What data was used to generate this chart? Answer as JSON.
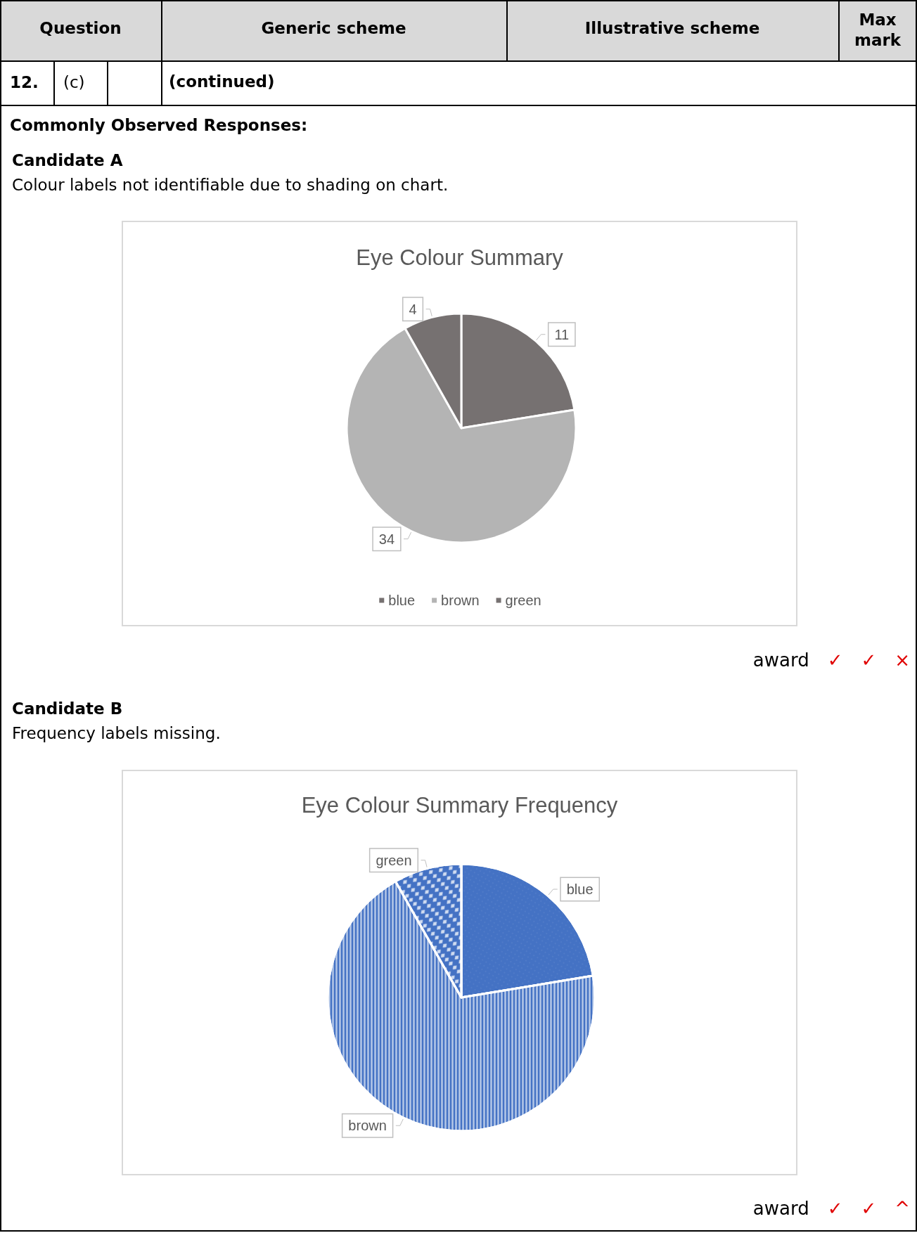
{
  "chart_data": [
    {
      "type": "pie",
      "title": "Eye Colour Summary",
      "categories": [
        "blue",
        "brown",
        "green"
      ],
      "values": [
        11,
        34,
        4
      ],
      "colors": [
        "#767171",
        "#b4b4b4",
        "#767171"
      ],
      "data_labels": true,
      "legend": "bottom",
      "annotations": [
        "Question",
        "Generic scheme",
        "Illustrative scheme",
        "Max mark",
        "12.",
        "(c)",
        "(continued)",
        "Commonly Observed Responses:",
        "Candidate A",
        "Colour labels not identifiable due to shading on chart.",
        "award ✓ ✓ ×"
      ]
    },
    {
      "type": "pie",
      "title": "Eye Colour Summary Frequency",
      "categories": [
        "blue",
        "brown",
        "green"
      ],
      "values": [
        22.4,
        69.4,
        8.2
      ],
      "colors": [
        "#4472c4",
        "#4472c4",
        "#4472c4"
      ],
      "legend": false,
      "annotations": [
        "Candidate B",
        "Frequency labels missing.",
        "award ✓ ✓ ^"
      ]
    }
  ]
}
